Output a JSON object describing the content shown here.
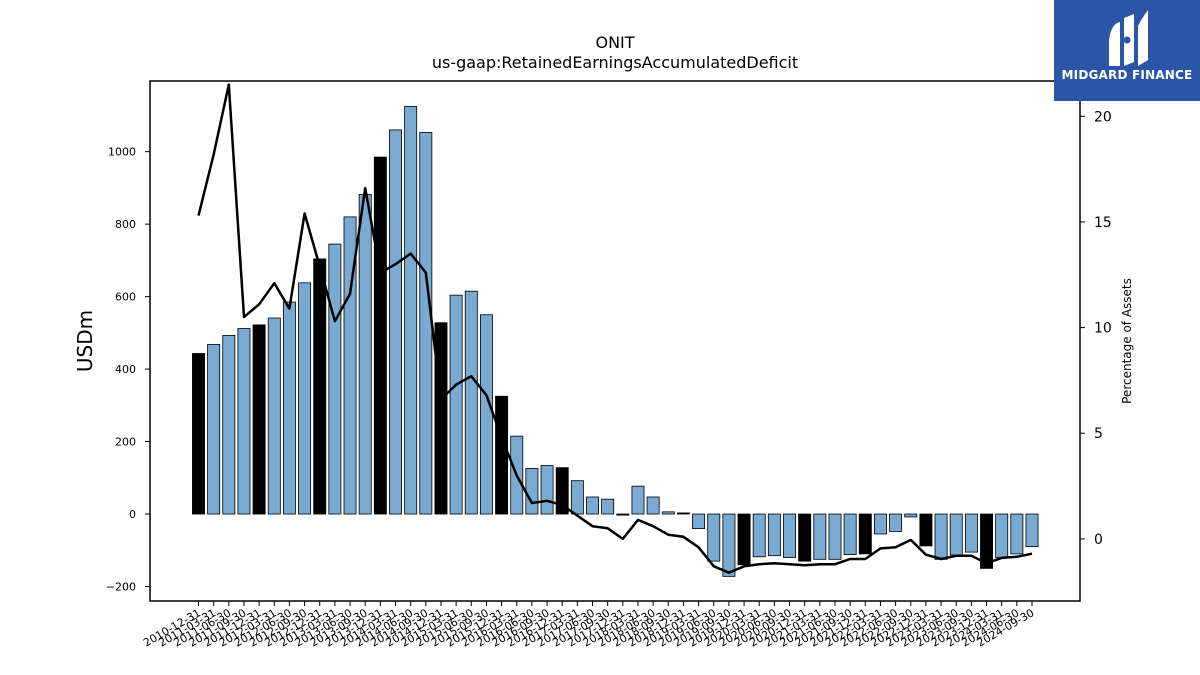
{
  "brand": {
    "name": "MIDGARD FINANCE",
    "color": "#2b56a6"
  },
  "chart_data": {
    "type": "bar",
    "title": "ONIT",
    "subtitle": "us-gaap:RetainedEarningsAccumulatedDeficit",
    "ylabel": "USDm",
    "y2label": "Percentage of Assets",
    "ylim": [
      -240,
      1195
    ],
    "y2lim": [
      -2.94,
      21.67
    ],
    "yticks": [
      -200,
      0,
      200,
      400,
      600,
      800,
      1000
    ],
    "y2ticks": [
      0,
      5,
      10,
      15,
      20
    ],
    "colors": {
      "bar": "#7aa9d1",
      "highlight": "#000000",
      "line": "#000000"
    },
    "categories": [
      "2010-12-31",
      "2011-03-31",
      "2011-06-30",
      "2011-09-30",
      "2011-12-31",
      "2012-03-31",
      "2012-06-30",
      "2012-09-30",
      "2012-12-31",
      "2013-03-31",
      "2013-06-30",
      "2013-09-30",
      "2013-12-31",
      "2014-03-31",
      "2014-06-30",
      "2014-09-30",
      "2014-12-31",
      "2015-03-31",
      "2015-06-30",
      "2015-09-30",
      "2015-12-31",
      "2016-03-31",
      "2016-06-30",
      "2016-09-30",
      "2016-12-31",
      "2017-03-31",
      "2017-06-30",
      "2017-09-30",
      "2017-12-31",
      "2018-03-31",
      "2018-06-30",
      "2018-09-30",
      "2018-12-31",
      "2019-03-31",
      "2019-06-30",
      "2019-09-30",
      "2019-12-31",
      "2020-03-31",
      "2020-06-30",
      "2020-09-30",
      "2020-12-31",
      "2021-03-31",
      "2021-06-30",
      "2021-09-30",
      "2021-12-31",
      "2022-03-31",
      "2022-06-30",
      "2022-09-30",
      "2022-12-31",
      "2023-03-31",
      "2023-06-30",
      "2023-09-30",
      "2023-12-31",
      "2024-03-31",
      "2024-06-30",
      "2024-09-30"
    ],
    "series": [
      {
        "values": [
          443,
          468,
          493,
          512,
          522,
          541,
          585,
          638,
          704,
          745,
          820,
          882,
          985,
          1060,
          1125,
          1053,
          528,
          604,
          615,
          550,
          325,
          215,
          126,
          134,
          128,
          92,
          47,
          41,
          -3,
          77,
          47,
          6,
          3,
          -40,
          -130,
          -172,
          -140,
          -118,
          -115,
          -120,
          -130,
          -125,
          -125,
          -112,
          -110,
          -55,
          -48,
          -8,
          -88,
          -125,
          -113,
          -105,
          -150,
          -120,
          -110,
          -90
        ]
      },
      {
        "values": [
          15.3,
          18.2,
          21.5,
          10.5,
          11.1,
          12.1,
          10.9,
          15.4,
          12.9,
          10.3,
          11.6,
          16.6,
          12.6,
          13.0,
          13.5,
          12.6,
          6.6,
          7.3,
          7.7,
          6.8,
          4.8,
          3.0,
          1.7,
          1.8,
          1.6,
          1.1,
          0.6,
          0.5,
          0,
          0.9,
          0.6,
          0.2,
          0.1,
          -0.4,
          -1.3,
          -1.6,
          -1.3,
          -1.2,
          -1.15,
          -1.2,
          -1.25,
          -1.2,
          -1.2,
          -0.95,
          -0.95,
          -0.45,
          -0.4,
          -0.05,
          -0.75,
          -0.95,
          -0.8,
          -0.8,
          -1.15,
          -0.9,
          -0.85,
          -0.7
        ]
      }
    ],
    "highlight": [
      0,
      4,
      8,
      12,
      16,
      20,
      24,
      28,
      32,
      36,
      40,
      44,
      48,
      52
    ],
    "grid": false,
    "legend": "none"
  }
}
